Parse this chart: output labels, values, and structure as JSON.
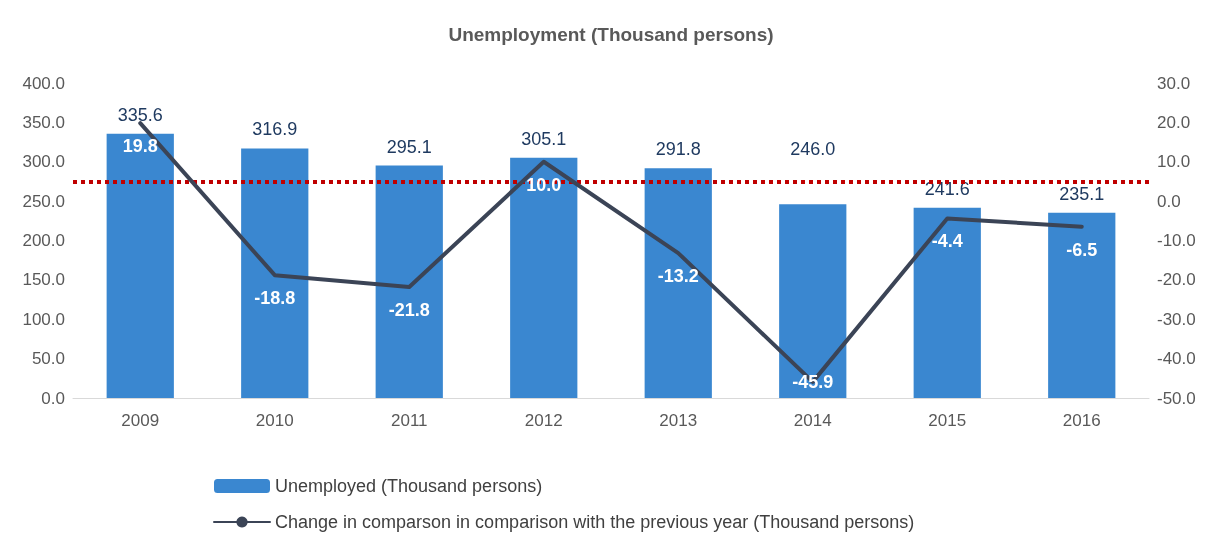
{
  "chart_data": {
    "type": "bar",
    "title": "Unemployment (Thousand persons)",
    "categories": [
      "2009",
      "2010",
      "2011",
      "2012",
      "2013",
      "2014",
      "2015",
      "2016"
    ],
    "series": [
      {
        "name": "Unemployed (Thousand persons)",
        "color": "#3a87d0",
        "values": [
          335.6,
          316.9,
          295.1,
          305.1,
          291.8,
          246.0,
          241.6,
          235.1
        ],
        "value_labels": [
          "335.6",
          "316.9",
          "295.1",
          "305.1",
          "291.8",
          "246.0",
          "241.6",
          "235.1"
        ]
      },
      {
        "name": "Change in comparson in comparison with the previous year (Thousand persons)",
        "type": "line",
        "axis": "y2",
        "color": "#3b4456",
        "values": [
          19.8,
          -18.8,
          -21.8,
          10.0,
          -13.2,
          -45.9,
          -4.4,
          -6.5
        ],
        "value_labels": [
          "19.8",
          "-18.8",
          "-21.8",
          "10.0",
          "-13.2",
          "-45.9",
          "-4.4",
          "-6.5"
        ],
        "marker": "none"
      }
    ],
    "ylim": [
      0,
      400
    ],
    "yticks": [
      {
        "value": 0,
        "label": "0.0"
      },
      {
        "value": 50,
        "label": "50.0"
      },
      {
        "value": 100,
        "label": "100.0"
      },
      {
        "value": 150,
        "label": "150.0"
      },
      {
        "value": 200,
        "label": "200.0"
      },
      {
        "value": 250,
        "label": "250.0"
      },
      {
        "value": 300,
        "label": "300.0"
      },
      {
        "value": 350,
        "label": "350.0"
      },
      {
        "value": 400,
        "label": "400.0"
      }
    ],
    "y2lim": [
      -50,
      30
    ],
    "y2ticks": [
      {
        "value": -50,
        "label": "-50.0"
      },
      {
        "value": -40,
        "label": "-40.0"
      },
      {
        "value": -30,
        "label": "-30.0"
      },
      {
        "value": -20,
        "label": "-20.0"
      },
      {
        "value": -10,
        "label": "-10.0"
      },
      {
        "value": 0,
        "label": "0.0"
      },
      {
        "value": 10,
        "label": "10.0"
      },
      {
        "value": 20,
        "label": "20.0"
      },
      {
        "value": 30,
        "label": "30.0"
      }
    ],
    "ref_lines": [
      {
        "axis": "y2",
        "value": 5.0,
        "label": null,
        "color": "#c00000",
        "line_style": "dotted"
      }
    ],
    "grid": false,
    "legend": "bottom"
  }
}
